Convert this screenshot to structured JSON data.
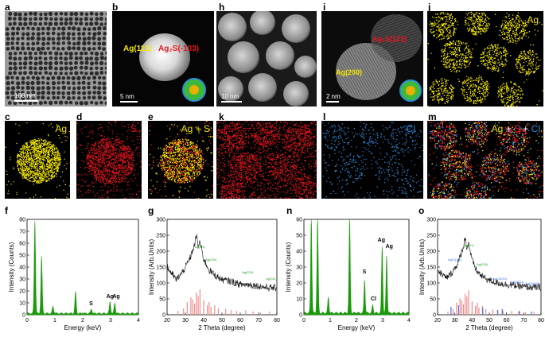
{
  "panel_letters": {
    "a": "a",
    "b": "b",
    "c": "c",
    "d": "d",
    "e": "e",
    "f": "f",
    "g": "g",
    "h": "h",
    "i": "i",
    "j": "j",
    "k": "k",
    "l": "l",
    "m": "m",
    "n": "n",
    "o": "o"
  },
  "panel_text": {
    "b_ag111": "Ag(111)",
    "b_ag2s": "Ag₂S(-103)",
    "b_scale": "5 nm",
    "a_scale": "100 nm",
    "h_scale": "10 nm",
    "i_scale": "2 nm",
    "i_ag2s": "Ag₂S(123)",
    "i_ag200": "Ag(200)",
    "c_label": "Ag",
    "d_label": "S",
    "e_ag": "Ag",
    "e_plus": " + ",
    "e_s": "S",
    "j_label": "Ag",
    "k_label": "S",
    "l_label": "Cl",
    "m_ag": "Ag",
    "m_plus1": " + ",
    "m_s": "S",
    "m_plus2": " + ",
    "m_cl": "Cl"
  },
  "colors": {
    "ag": "#f2e500",
    "s": "#e8141e",
    "cl": "#2f8fe0",
    "spectrum": "#1a9a0a",
    "xrd_line": "#111111"
  },
  "chart_data": [
    {
      "id": "f",
      "type": "area",
      "xlabel": "Energy (keV)",
      "ylabel": "Intensity (Counts)",
      "xlim": [
        0,
        4
      ],
      "ylim": [
        0,
        80
      ],
      "xticks": [
        "0",
        "1",
        "2",
        "3",
        "4"
      ],
      "yticks": [
        "0",
        "10",
        "20",
        "30",
        "40",
        "50",
        "60",
        "70",
        "80"
      ],
      "peaks": [
        [
          0.28,
          78
        ],
        [
          0.52,
          48
        ],
        [
          0.93,
          6
        ],
        [
          1.74,
          18
        ],
        [
          2.31,
          4
        ],
        [
          2.98,
          10
        ],
        [
          3.15,
          9
        ]
      ],
      "annotations": [
        {
          "text": "S",
          "x": 2.3,
          "y": 8
        },
        {
          "text": "Ag",
          "x": 2.98,
          "y": 14
        },
        {
          "text": "Ag",
          "x": 3.2,
          "y": 14
        }
      ]
    },
    {
      "id": "g",
      "type": "line",
      "xlabel": "2 Theta (degree)",
      "ylabel": "Intensity (Arb.Units)",
      "xlim": [
        20,
        80
      ],
      "ylim": [
        0,
        300
      ],
      "xticks": [
        "20",
        "30",
        "40",
        "50",
        "60",
        "70",
        "80"
      ],
      "yticks": [
        "0",
        "50",
        "100",
        "150",
        "200",
        "250",
        "300"
      ],
      "profile": [
        [
          20,
          150
        ],
        [
          25,
          110
        ],
        [
          28,
          130
        ],
        [
          31,
          160
        ],
        [
          33,
          185
        ],
        [
          35,
          220
        ],
        [
          36,
          250
        ],
        [
          37,
          215
        ],
        [
          38,
          230
        ],
        [
          40,
          175
        ],
        [
          43,
          140
        ],
        [
          46,
          125
        ],
        [
          50,
          110
        ],
        [
          55,
          105
        ],
        [
          60,
          95
        ],
        [
          65,
          95
        ],
        [
          70,
          90
        ],
        [
          75,
          85
        ],
        [
          80,
          85
        ]
      ],
      "reference_bars": [
        [
          26,
          12
        ],
        [
          29,
          20
        ],
        [
          31,
          40
        ],
        [
          33,
          55
        ],
        [
          34,
          48
        ],
        [
          35,
          35
        ],
        [
          36,
          70
        ],
        [
          37,
          60
        ],
        [
          38,
          80
        ],
        [
          40,
          45
        ],
        [
          42,
          30
        ],
        [
          43,
          40
        ],
        [
          44,
          25
        ],
        [
          46,
          30
        ],
        [
          48,
          20
        ],
        [
          52,
          18
        ],
        [
          55,
          15
        ],
        [
          58,
          12
        ],
        [
          63,
          14
        ],
        [
          67,
          10
        ],
        [
          71,
          8
        ],
        [
          76,
          10
        ]
      ],
      "annotations": [
        {
          "text": "Ag(111)",
          "x": 38,
          "y": 210
        },
        {
          "text": "Ag(200)",
          "x": 44,
          "y": 170
        },
        {
          "text": "Ag(220)",
          "x": 64,
          "y": 130
        },
        {
          "text": "Ag(311)",
          "x": 77,
          "y": 110
        }
      ]
    },
    {
      "id": "n",
      "type": "area",
      "xlabel": "Energy (keV)",
      "ylabel": "Intensity (Counts)",
      "xlim": [
        0,
        4
      ],
      "ylim": [
        0,
        60
      ],
      "xticks": [
        "0",
        "1",
        "2",
        "3",
        "4"
      ],
      "yticks": [
        "0",
        "10",
        "20",
        "30",
        "40",
        "50",
        "60"
      ],
      "peaks": [
        [
          0.28,
          60
        ],
        [
          0.52,
          60
        ],
        [
          0.93,
          10
        ],
        [
          1.74,
          60
        ],
        [
          2.31,
          21
        ],
        [
          2.62,
          5
        ],
        [
          2.98,
          42
        ],
        [
          3.15,
          36
        ]
      ],
      "annotations": [
        {
          "text": "S",
          "x": 2.3,
          "y": 26
        },
        {
          "text": "Cl",
          "x": 2.65,
          "y": 9
        },
        {
          "text": "Ag",
          "x": 2.95,
          "y": 46
        },
        {
          "text": "Ag",
          "x": 3.25,
          "y": 42
        }
      ]
    },
    {
      "id": "o",
      "type": "line",
      "xlabel": "2 Theta (degree)",
      "ylabel": "Intensity (Arb.Units)",
      "xlim": [
        20,
        80
      ],
      "ylim": [
        0,
        300
      ],
      "xticks": [
        "20",
        "30",
        "40",
        "50",
        "60",
        "70",
        "80"
      ],
      "yticks": [
        "0",
        "50",
        "100",
        "150",
        "200",
        "250",
        "300"
      ],
      "profile": [
        [
          20,
          140
        ],
        [
          25,
          115
        ],
        [
          28,
          130
        ],
        [
          31,
          155
        ],
        [
          33,
          180
        ],
        [
          35,
          215
        ],
        [
          36,
          245
        ],
        [
          37,
          210
        ],
        [
          38,
          225
        ],
        [
          40,
          170
        ],
        [
          43,
          135
        ],
        [
          46,
          120
        ],
        [
          50,
          108
        ],
        [
          55,
          100
        ],
        [
          60,
          95
        ],
        [
          65,
          92
        ],
        [
          70,
          88
        ],
        [
          75,
          86
        ],
        [
          80,
          86
        ]
      ],
      "reference_bars": [
        [
          26,
          10
        ],
        [
          29,
          18
        ],
        [
          31,
          38
        ],
        [
          33,
          52
        ],
        [
          34,
          45
        ],
        [
          35,
          33
        ],
        [
          36,
          66
        ],
        [
          37,
          58
        ],
        [
          38,
          76
        ],
        [
          40,
          42
        ],
        [
          42,
          28
        ],
        [
          43,
          38
        ],
        [
          44,
          22
        ],
        [
          46,
          28
        ],
        [
          48,
          18
        ],
        [
          52,
          16
        ],
        [
          55,
          14
        ],
        [
          58,
          12
        ],
        [
          63,
          12
        ],
        [
          67,
          10
        ],
        [
          71,
          8
        ],
        [
          76,
          9
        ]
      ],
      "blue_bars": [
        [
          27.8,
          25
        ],
        [
          32.2,
          30
        ],
        [
          46.2,
          22
        ],
        [
          54.8,
          15
        ],
        [
          57.5,
          18
        ],
        [
          67.5,
          12
        ],
        [
          74.5,
          10
        ]
      ],
      "annotations": [
        {
          "text": "AgCl(111)",
          "x": 30,
          "y": 170
        },
        {
          "text": "Ag(111)",
          "x": 38,
          "y": 215
        },
        {
          "text": "Ag(200)",
          "x": 46,
          "y": 155
        },
        {
          "text": "AgCl(220)",
          "x": 56,
          "y": 110
        },
        {
          "text": "AgCl(311)",
          "x": 66,
          "y": 100
        },
        {
          "text": "AgCl(400)",
          "x": 75,
          "y": 95
        }
      ]
    }
  ]
}
